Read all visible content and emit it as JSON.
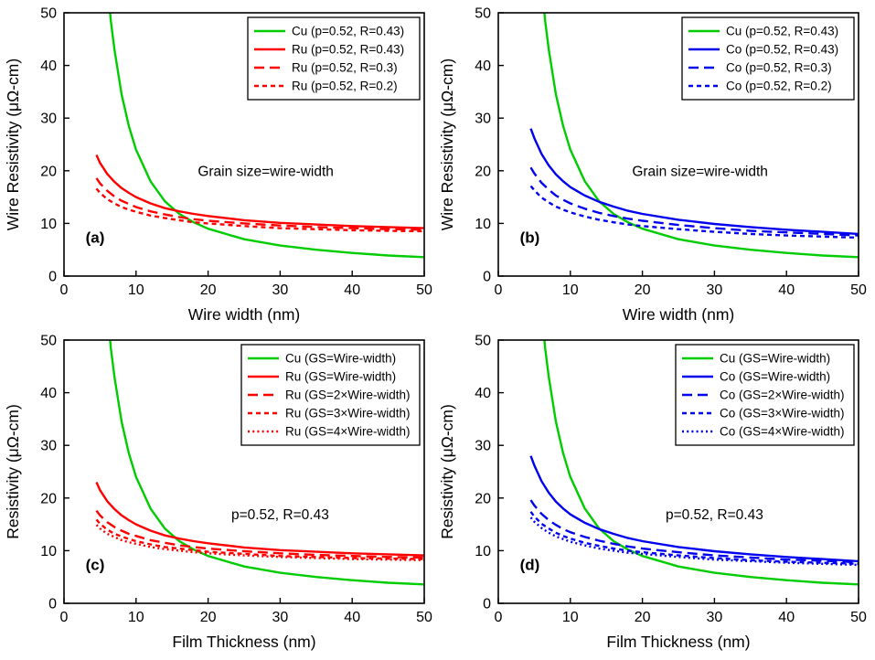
{
  "page": {
    "background": "#ffffff"
  },
  "colors": {
    "cu": "#00cc00",
    "ru": "#ff0000",
    "co": "#0000ee",
    "axis": "#000000"
  },
  "chart_data": [
    {
      "id": "a",
      "type": "line",
      "panel_label": "(a)",
      "panel_label_pos": {
        "x": 3.0,
        "y": 6.3
      },
      "xlabel": "Wire width (nm)",
      "ylabel": "Wire Resistivity (μΩ-cm)",
      "xlim": [
        0,
        50
      ],
      "ylim": [
        0,
        50
      ],
      "xticks": [
        0,
        10,
        20,
        30,
        40,
        50
      ],
      "yticks": [
        0,
        10,
        20,
        30,
        40,
        50
      ],
      "annotation": {
        "text": "Grain size=wire-width",
        "x": 28,
        "y": 19
      },
      "legend_position": "top-right",
      "series": [
        {
          "name": "Cu (p=0.52, R=0.43)",
          "color": "#00cc00",
          "style": "solid",
          "x": [
            5.2,
            5.5,
            6,
            6.5,
            7,
            8,
            9,
            10,
            12,
            14,
            16,
            18,
            20,
            25,
            30,
            35,
            40,
            45,
            50
          ],
          "y": [
            80,
            68,
            56,
            48.5,
            43,
            34.5,
            28.5,
            24,
            18,
            14.2,
            11.8,
            10.2,
            9.0,
            7.0,
            5.8,
            5.0,
            4.4,
            3.9,
            3.6
          ]
        },
        {
          "name": "Ru (p=0.52, R=0.43)",
          "color": "#ff0000",
          "style": "solid",
          "x": [
            4.5,
            5,
            6,
            7,
            8,
            9,
            10,
            12,
            14,
            16,
            18,
            20,
            25,
            30,
            35,
            40,
            45,
            50
          ],
          "y": [
            23.0,
            21.5,
            19.4,
            17.9,
            16.7,
            15.8,
            15.0,
            13.8,
            12.9,
            12.3,
            11.8,
            11.4,
            10.6,
            10.1,
            9.8,
            9.5,
            9.3,
            9.1
          ]
        },
        {
          "name": "Ru (p=0.52, R=0.3)",
          "color": "#ff0000",
          "style": "dash",
          "x": [
            4.5,
            5,
            6,
            7,
            8,
            9,
            10,
            12,
            14,
            16,
            18,
            20,
            25,
            30,
            35,
            40,
            45,
            50
          ],
          "y": [
            18.6,
            17.6,
            16.2,
            15.1,
            14.3,
            13.7,
            13.1,
            12.3,
            11.7,
            11.2,
            10.8,
            10.5,
            10.0,
            9.6,
            9.3,
            9.1,
            8.9,
            8.8
          ]
        },
        {
          "name": "Ru (p=0.52, R=0.2)",
          "color": "#ff0000",
          "style": "short-dash",
          "x": [
            4.5,
            5,
            6,
            7,
            8,
            9,
            10,
            12,
            14,
            16,
            18,
            20,
            25,
            30,
            35,
            40,
            45,
            50
          ],
          "y": [
            16.6,
            15.8,
            14.6,
            13.8,
            13.1,
            12.6,
            12.2,
            11.5,
            11.0,
            10.6,
            10.2,
            10.0,
            9.5,
            9.1,
            8.9,
            8.7,
            8.6,
            8.5
          ]
        }
      ]
    },
    {
      "id": "b",
      "type": "line",
      "panel_label": "(b)",
      "panel_label_pos": {
        "x": 3.0,
        "y": 6.3
      },
      "xlabel": "Wire width (nm)",
      "ylabel": "Wire Resistivity (μΩ-cm)",
      "xlim": [
        0,
        50
      ],
      "ylim": [
        0,
        50
      ],
      "xticks": [
        0,
        10,
        20,
        30,
        40,
        50
      ],
      "yticks": [
        0,
        10,
        20,
        30,
        40,
        50
      ],
      "annotation": {
        "text": "Grain size=wire-width",
        "x": 28,
        "y": 19
      },
      "legend_position": "top-right",
      "series": [
        {
          "name": "Cu (p=0.52, R=0.43)",
          "color": "#00cc00",
          "style": "solid",
          "x": [
            5.2,
            5.5,
            6,
            6.5,
            7,
            8,
            9,
            10,
            12,
            14,
            16,
            18,
            20,
            25,
            30,
            35,
            40,
            45,
            50
          ],
          "y": [
            80,
            68,
            56,
            48.5,
            43,
            34.5,
            28.5,
            24,
            18,
            14.2,
            11.8,
            10.2,
            9.0,
            7.0,
            5.8,
            5.0,
            4.4,
            3.9,
            3.6
          ]
        },
        {
          "name": "Co (p=0.52, R=0.43)",
          "color": "#0000ee",
          "style": "solid",
          "x": [
            4.5,
            5,
            6,
            7,
            8,
            9,
            10,
            12,
            14,
            16,
            18,
            20,
            25,
            30,
            35,
            40,
            45,
            50
          ],
          "y": [
            28.0,
            26.2,
            23.2,
            21.0,
            19.3,
            18.0,
            16.9,
            15.3,
            14.1,
            13.2,
            12.4,
            11.8,
            10.7,
            9.9,
            9.3,
            8.8,
            8.4,
            8.0
          ]
        },
        {
          "name": "Co (p=0.52, R=0.3)",
          "color": "#0000ee",
          "style": "dash",
          "x": [
            4.5,
            5,
            6,
            7,
            8,
            9,
            10,
            12,
            14,
            16,
            18,
            20,
            25,
            30,
            35,
            40,
            45,
            50
          ],
          "y": [
            20.6,
            19.5,
            17.7,
            16.4,
            15.3,
            14.5,
            13.8,
            12.8,
            12.0,
            11.4,
            10.9,
            10.5,
            9.7,
            9.1,
            8.6,
            8.3,
            8.0,
            7.7
          ]
        },
        {
          "name": "Co (p=0.52, R=0.2)",
          "color": "#0000ee",
          "style": "short-dash",
          "x": [
            4.5,
            5,
            6,
            7,
            8,
            9,
            10,
            12,
            14,
            16,
            18,
            20,
            25,
            30,
            35,
            40,
            45,
            50
          ],
          "y": [
            17.1,
            16.3,
            14.9,
            14.0,
            13.2,
            12.6,
            12.1,
            11.3,
            10.7,
            10.2,
            9.8,
            9.5,
            8.9,
            8.4,
            8.0,
            7.7,
            7.5,
            7.3
          ]
        }
      ]
    },
    {
      "id": "c",
      "type": "line",
      "panel_label": "(c)",
      "panel_label_pos": {
        "x": 3.0,
        "y": 6.3
      },
      "xlabel": "Film Thickness (nm)",
      "ylabel": "Resistivity (μΩ-cm)",
      "xlim": [
        0,
        50
      ],
      "ylim": [
        0,
        50
      ],
      "xticks": [
        0,
        10,
        20,
        30,
        40,
        50
      ],
      "yticks": [
        0,
        10,
        20,
        30,
        40,
        50
      ],
      "annotation": {
        "text": "p=0.52, R=0.43",
        "x": 30,
        "y": 16
      },
      "legend_position": "top-right",
      "series": [
        {
          "name": "Cu (GS=Wire-width)",
          "color": "#00cc00",
          "style": "solid",
          "x": [
            5.2,
            5.5,
            6,
            6.5,
            7,
            8,
            9,
            10,
            12,
            14,
            16,
            18,
            20,
            25,
            30,
            35,
            40,
            45,
            50
          ],
          "y": [
            80,
            68,
            56,
            48.5,
            43,
            34.5,
            28.5,
            24,
            18,
            14.2,
            11.8,
            10.2,
            9.0,
            7.0,
            5.8,
            5.0,
            4.4,
            3.9,
            3.6
          ]
        },
        {
          "name": "Ru (GS=Wire-width)",
          "color": "#ff0000",
          "style": "solid",
          "x": [
            4.5,
            5,
            6,
            7,
            8,
            9,
            10,
            12,
            14,
            16,
            18,
            20,
            25,
            30,
            35,
            40,
            45,
            50
          ],
          "y": [
            23.0,
            21.5,
            19.4,
            17.9,
            16.7,
            15.8,
            15.0,
            13.8,
            12.9,
            12.3,
            11.8,
            11.4,
            10.6,
            10.1,
            9.8,
            9.5,
            9.3,
            9.1
          ]
        },
        {
          "name": "Ru (GS=2×Wire-width)",
          "color": "#ff0000",
          "style": "dash",
          "x": [
            4.5,
            5,
            6,
            7,
            8,
            9,
            10,
            12,
            14,
            16,
            18,
            20,
            25,
            30,
            35,
            40,
            45,
            50
          ],
          "y": [
            17.6,
            16.7,
            15.4,
            14.5,
            13.8,
            13.2,
            12.8,
            12.0,
            11.5,
            11.0,
            10.7,
            10.4,
            9.9,
            9.5,
            9.2,
            9.0,
            8.8,
            8.7
          ]
        },
        {
          "name": "Ru (GS=3×Wire-width)",
          "color": "#ff0000",
          "style": "short-dash",
          "x": [
            4.5,
            5,
            6,
            7,
            8,
            9,
            10,
            12,
            14,
            16,
            18,
            20,
            25,
            30,
            35,
            40,
            45,
            50
          ],
          "y": [
            15.9,
            15.1,
            14.0,
            13.2,
            12.7,
            12.2,
            11.8,
            11.2,
            10.7,
            10.4,
            10.1,
            9.8,
            9.4,
            9.0,
            8.8,
            8.6,
            8.5,
            8.4
          ]
        },
        {
          "name": "Ru (GS=4×Wire-width)",
          "color": "#ff0000",
          "style": "dot",
          "x": [
            4.5,
            5,
            6,
            7,
            8,
            9,
            10,
            12,
            14,
            16,
            18,
            20,
            25,
            30,
            35,
            40,
            45,
            50
          ],
          "y": [
            14.9,
            14.2,
            13.2,
            12.6,
            12.0,
            11.6,
            11.3,
            10.7,
            10.3,
            10.0,
            9.7,
            9.5,
            9.1,
            8.8,
            8.6,
            8.4,
            8.3,
            8.2
          ]
        }
      ]
    },
    {
      "id": "d",
      "type": "line",
      "panel_label": "(d)",
      "panel_label_pos": {
        "x": 3.0,
        "y": 6.3
      },
      "xlabel": "Film Thickness (nm)",
      "ylabel": "Resistivity (μΩ-cm)",
      "xlim": [
        0,
        50
      ],
      "ylim": [
        0,
        50
      ],
      "xticks": [
        0,
        10,
        20,
        30,
        40,
        50
      ],
      "yticks": [
        0,
        10,
        20,
        30,
        40,
        50
      ],
      "annotation": {
        "text": "p=0.52, R=0.43",
        "x": 30,
        "y": 16
      },
      "legend_position": "top-right",
      "series": [
        {
          "name": "Cu (GS=Wire-width)",
          "color": "#00cc00",
          "style": "solid",
          "x": [
            5.2,
            5.5,
            6,
            6.5,
            7,
            8,
            9,
            10,
            12,
            14,
            16,
            18,
            20,
            25,
            30,
            35,
            40,
            45,
            50
          ],
          "y": [
            80,
            68,
            56,
            48.5,
            43,
            34.5,
            28.5,
            24,
            18,
            14.2,
            11.8,
            10.2,
            9.0,
            7.0,
            5.8,
            5.0,
            4.4,
            3.9,
            3.6
          ]
        },
        {
          "name": "Co (GS=Wire-width)",
          "color": "#0000ee",
          "style": "solid",
          "x": [
            4.5,
            5,
            6,
            7,
            8,
            9,
            10,
            12,
            14,
            16,
            18,
            20,
            25,
            30,
            35,
            40,
            45,
            50
          ],
          "y": [
            28.0,
            26.2,
            23.2,
            21.0,
            19.3,
            18.0,
            16.9,
            15.3,
            14.1,
            13.2,
            12.4,
            11.8,
            10.7,
            9.9,
            9.3,
            8.8,
            8.4,
            8.0
          ]
        },
        {
          "name": "Co (GS=2×Wire-width)",
          "color": "#0000ee",
          "style": "dash",
          "x": [
            4.5,
            5,
            6,
            7,
            8,
            9,
            10,
            12,
            14,
            16,
            18,
            20,
            25,
            30,
            35,
            40,
            45,
            50
          ],
          "y": [
            19.6,
            18.6,
            17.0,
            15.8,
            14.9,
            14.1,
            13.5,
            12.6,
            11.9,
            11.3,
            10.8,
            10.4,
            9.7,
            9.1,
            8.7,
            8.3,
            8.1,
            7.8
          ]
        },
        {
          "name": "Co (GS=3×Wire-width)",
          "color": "#0000ee",
          "style": "short-dash",
          "x": [
            4.5,
            5,
            6,
            7,
            8,
            9,
            10,
            12,
            14,
            16,
            18,
            20,
            25,
            30,
            35,
            40,
            45,
            50
          ],
          "y": [
            17.4,
            16.5,
            15.1,
            14.2,
            13.4,
            12.8,
            12.3,
            11.5,
            10.9,
            10.4,
            10.0,
            9.7,
            9.1,
            8.6,
            8.2,
            7.9,
            7.7,
            7.5
          ]
        },
        {
          "name": "Co (GS=4×Wire-width)",
          "color": "#0000ee",
          "style": "dot",
          "x": [
            4.5,
            5,
            6,
            7,
            8,
            9,
            10,
            12,
            14,
            16,
            18,
            20,
            25,
            30,
            35,
            40,
            45,
            50
          ],
          "y": [
            16.3,
            15.5,
            14.3,
            13.4,
            12.7,
            12.2,
            11.7,
            11.0,
            10.4,
            10.0,
            9.6,
            9.4,
            8.8,
            8.3,
            8.0,
            7.7,
            7.5,
            7.3
          ]
        }
      ]
    }
  ]
}
